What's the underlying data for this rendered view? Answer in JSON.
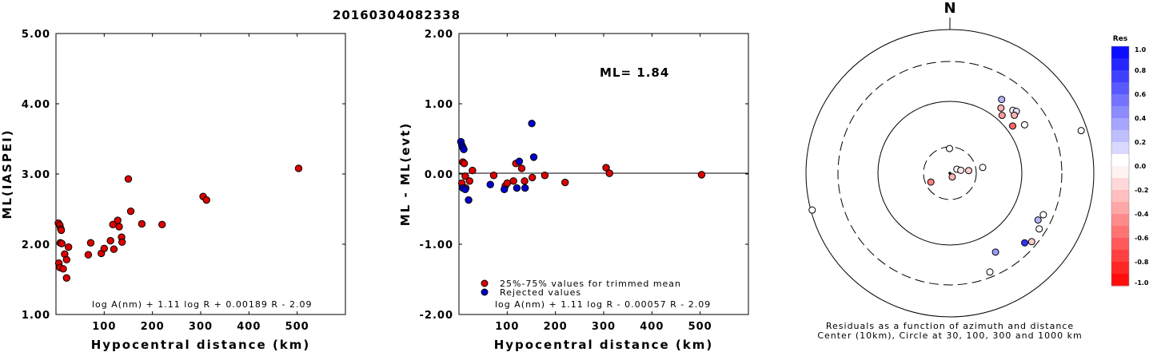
{
  "title": "20160304082338",
  "chart_data": [
    {
      "type": "scatter",
      "id": "ml_vs_distance",
      "xlabel": "Hypocentral distance (km)",
      "ylabel": "ML(IASPEI)",
      "xlim": [
        0,
        600
      ],
      "ylim": [
        1.0,
        5.0
      ],
      "x_ticks": [
        "100",
        "200",
        "300",
        "400",
        "500"
      ],
      "y_ticks": [
        "1.00",
        "2.00",
        "3.00",
        "4.00",
        "5.00"
      ],
      "formula": "log A(nm) + 1.11 log R + 0.00189 R - 2.09",
      "series": [
        {
          "color": "#dd0000",
          "points": [
            [
              5,
              2.3
            ],
            [
              8,
              2.27
            ],
            [
              10,
              2.22
            ],
            [
              11,
              2.2
            ],
            [
              9,
              2.02
            ],
            [
              12,
              2.01
            ],
            [
              6,
              1.73
            ],
            [
              8,
              1.67
            ],
            [
              15,
              1.65
            ],
            [
              18,
              1.86
            ],
            [
              22,
              1.78
            ],
            [
              26,
              1.96
            ],
            [
              22,
              1.52
            ],
            [
              67,
              1.85
            ],
            [
              72,
              2.02
            ],
            [
              94,
              1.87
            ],
            [
              100,
              1.94
            ],
            [
              113,
              2.05
            ],
            [
              118,
              2.28
            ],
            [
              120,
              1.93
            ],
            [
              128,
              2.34
            ],
            [
              131,
              2.25
            ],
            [
              136,
              2.1
            ],
            [
              137,
              2.03
            ],
            [
              150,
              2.93
            ],
            [
              155,
              2.47
            ],
            [
              178,
              2.29
            ],
            [
              220,
              2.28
            ],
            [
              305,
              2.68
            ],
            [
              312,
              2.63
            ],
            [
              503,
              3.08
            ]
          ]
        }
      ]
    },
    {
      "type": "scatter",
      "id": "residual_vs_distance",
      "xlabel": "Hypocentral distance (km)",
      "ylabel": "ML - ML(evt)",
      "xlim": [
        0,
        600
      ],
      "ylim": [
        -2.0,
        2.0
      ],
      "x_ticks": [
        "100",
        "200",
        "300",
        "400",
        "500"
      ],
      "y_ticks": [
        "-2.00",
        "-1.00",
        "0.00",
        "1.00",
        "2.00"
      ],
      "ml_label": "ML= 1.84",
      "formula": "log A(nm) + 1.11 log R - 0.00057 R - 2.09",
      "legend": [
        "25%-75% values for trimmed mean",
        "Rejected values"
      ],
      "series": [
        {
          "name": "25%-75% values for trimmed mean",
          "color": "#dd0000",
          "points": [
            [
              8,
              0.17
            ],
            [
              11,
              0.15
            ],
            [
              13,
              -0.03
            ],
            [
              6,
              -0.13
            ],
            [
              14,
              -0.2
            ],
            [
              22,
              -0.1
            ],
            [
              28,
              0.05
            ],
            [
              72,
              -0.02
            ],
            [
              96,
              -0.17
            ],
            [
              100,
              -0.13
            ],
            [
              113,
              -0.1
            ],
            [
              118,
              0.15
            ],
            [
              130,
              0.08
            ],
            [
              136,
              -0.1
            ],
            [
              152,
              -0.05
            ],
            [
              178,
              -0.02
            ],
            [
              220,
              -0.12
            ],
            [
              305,
              0.09
            ],
            [
              312,
              0.01
            ],
            [
              503,
              -0.01
            ]
          ]
        },
        {
          "name": "Rejected values",
          "color": "#0000cc",
          "points": [
            [
              4,
              0.46
            ],
            [
              6,
              0.41
            ],
            [
              8,
              0.38
            ],
            [
              10,
              0.35
            ],
            [
              8,
              -0.2
            ],
            [
              13,
              -0.22
            ],
            [
              20,
              -0.37
            ],
            [
              65,
              -0.15
            ],
            [
              94,
              -0.22
            ],
            [
              120,
              -0.2
            ],
            [
              125,
              0.18
            ],
            [
              137,
              -0.2
            ],
            [
              151,
              0.72
            ],
            [
              155,
              0.24
            ]
          ]
        }
      ]
    },
    {
      "type": "scatter",
      "id": "residual_polar",
      "north_label": "N",
      "caption_line1": "Residuals as a function of azimuth and distance",
      "caption_line2": "Center (10km), Circle at 30, 100, 300 and 1000 km",
      "colorbar_title": "Res",
      "colorbar_ticks": [
        "1.0",
        "0.8",
        "0.6",
        "0.4",
        "0.2",
        "0.0",
        "-0.2",
        "-0.4",
        "-0.6",
        "-0.8",
        "-1.0"
      ],
      "stations": [
        {
          "az": 359,
          "dist": 28,
          "res": 0.0
        },
        {
          "az": 60,
          "dist": 14,
          "res": 0.0
        },
        {
          "az": 75,
          "dist": 16,
          "res": -0.1
        },
        {
          "az": 82,
          "dist": 22,
          "res": -0.2
        },
        {
          "az": 148,
          "dist": 12,
          "res": -0.3
        },
        {
          "az": 80,
          "dist": 36,
          "res": 0.0
        },
        {
          "az": 245,
          "dist": 24,
          "res": -0.5
        },
        {
          "az": 35,
          "dist": 165,
          "res": 0.3
        },
        {
          "az": 38,
          "dist": 135,
          "res": -0.3
        },
        {
          "az": 42,
          "dist": 118,
          "res": -0.4
        },
        {
          "az": 45,
          "dist": 160,
          "res": 0.0
        },
        {
          "az": 47,
          "dist": 168,
          "res": 0.1
        },
        {
          "az": 48,
          "dist": 150,
          "res": -0.3
        },
        {
          "az": 53,
          "dist": 120,
          "res": -0.6
        },
        {
          "az": 57,
          "dist": 160,
          "res": 0.0
        },
        {
          "az": 72,
          "dist": 800,
          "res": 0.0
        },
        {
          "az": 114,
          "dist": 230,
          "res": 0.0
        },
        {
          "az": 118,
          "dist": 215,
          "res": 0.3
        },
        {
          "az": 122,
          "dist": 250,
          "res": 0.0
        },
        {
          "az": 133,
          "dist": 230,
          "res": 0.8
        },
        {
          "az": 130,
          "dist": 260,
          "res": -0.2
        },
        {
          "az": 150,
          "dist": 170,
          "res": 0.4
        },
        {
          "az": 158,
          "dist": 260,
          "res": 0.0
        },
        {
          "az": 255,
          "dist": 950,
          "res": 0.0
        }
      ]
    }
  ]
}
